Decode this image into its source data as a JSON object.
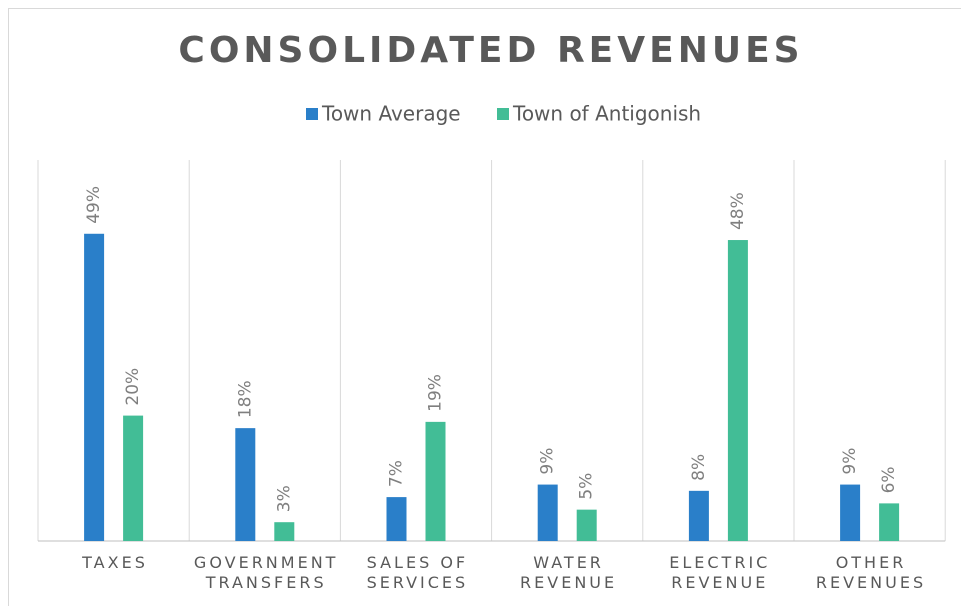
{
  "chart_data": {
    "type": "bar",
    "title": "CONSOLIDATED REVENUES",
    "categories": [
      "TAXES",
      "GOVERNMENT\nTRANSFERS",
      "SALES OF\nSERVICES",
      "WATER\nREVENUE",
      "ELECTRIC\nREVENUE",
      "OTHER\nREVENUES"
    ],
    "series": [
      {
        "name": "Town Average",
        "color": "#2a7fc9",
        "values": [
          49,
          18,
          7,
          9,
          8,
          9
        ],
        "value_labels": [
          "49%",
          "18%",
          "7%",
          "9%",
          "8%",
          "9%"
        ]
      },
      {
        "name": "Town of Antigonish",
        "color": "#42bd96",
        "values": [
          20,
          3,
          19,
          5,
          48,
          6
        ],
        "value_labels": [
          "20%",
          "3%",
          "19%",
          "5%",
          "48%",
          "6%"
        ]
      }
    ],
    "legend": "top"
  }
}
